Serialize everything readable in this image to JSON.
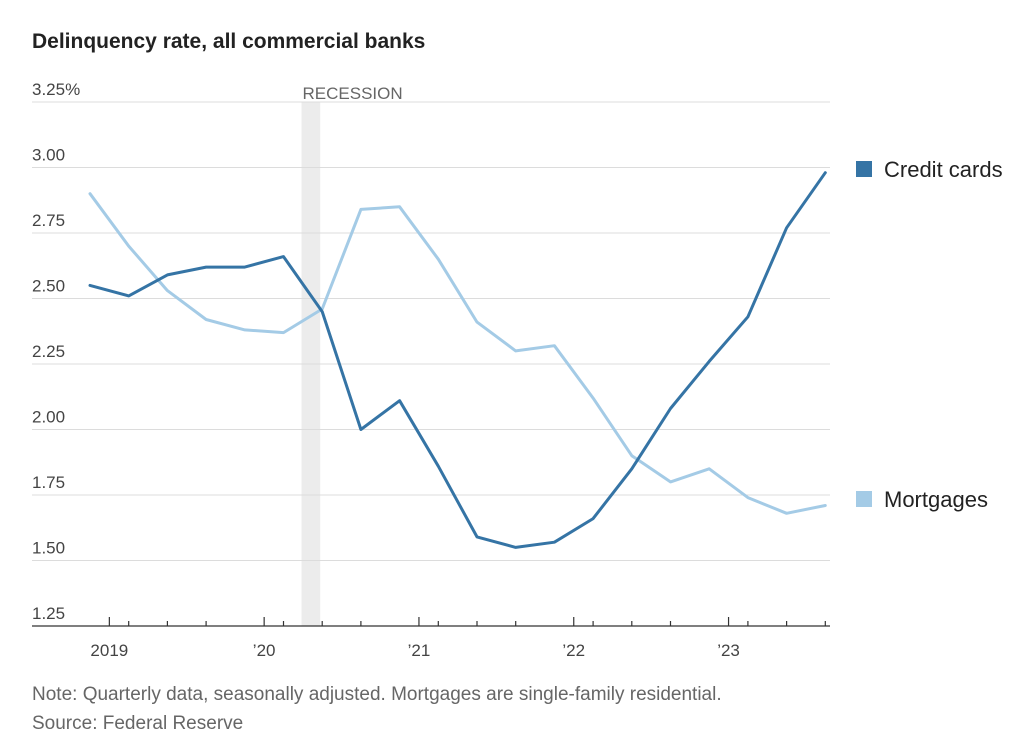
{
  "title": "Delinquency rate, all commercial banks",
  "note": "Note: Quarterly data, seasonally adjusted. Mortgages are single-family residential.",
  "source": "Source: Federal Reserve",
  "chart_data": {
    "type": "line",
    "title": "Delinquency rate, all commercial banks",
    "x": [
      "2018 Q4",
      "2019 Q1",
      "2019 Q2",
      "2019 Q3",
      "2019 Q4",
      "2020 Q1",
      "2020 Q2",
      "2020 Q3",
      "2020 Q4",
      "2021 Q1",
      "2021 Q2",
      "2021 Q3",
      "2021 Q4",
      "2022 Q1",
      "2022 Q2",
      "2022 Q3",
      "2022 Q4",
      "2023 Q1",
      "2023 Q2",
      "2023 Q3"
    ],
    "x_tick_labels": [
      "2019",
      "’20",
      "’21",
      "’22",
      "’23"
    ],
    "y_tick_labels": [
      "3.25%",
      "3.00",
      "2.75",
      "2.50",
      "2.25",
      "2.00",
      "1.75",
      "1.50",
      "1.25"
    ],
    "ylim": [
      1.25,
      3.25
    ],
    "grid": true,
    "legend_position": "right",
    "recession_label": "RECESSION",
    "recession_span": [
      "2020 Q1",
      "2020 Q2"
    ],
    "series": [
      {
        "name": "Credit cards",
        "color": "#3574a5",
        "values": [
          2.55,
          2.51,
          2.59,
          2.62,
          2.62,
          2.66,
          2.45,
          2.0,
          2.11,
          1.86,
          1.59,
          1.55,
          1.57,
          1.66,
          1.85,
          2.08,
          2.26,
          2.43,
          2.77,
          2.98
        ]
      },
      {
        "name": "Mortgages",
        "color": "#a4cbe6",
        "values": [
          2.9,
          2.7,
          2.53,
          2.42,
          2.38,
          2.37,
          2.46,
          2.84,
          2.85,
          2.65,
          2.41,
          2.3,
          2.32,
          2.12,
          1.9,
          1.8,
          1.85,
          1.74,
          1.68,
          1.71
        ]
      }
    ]
  }
}
